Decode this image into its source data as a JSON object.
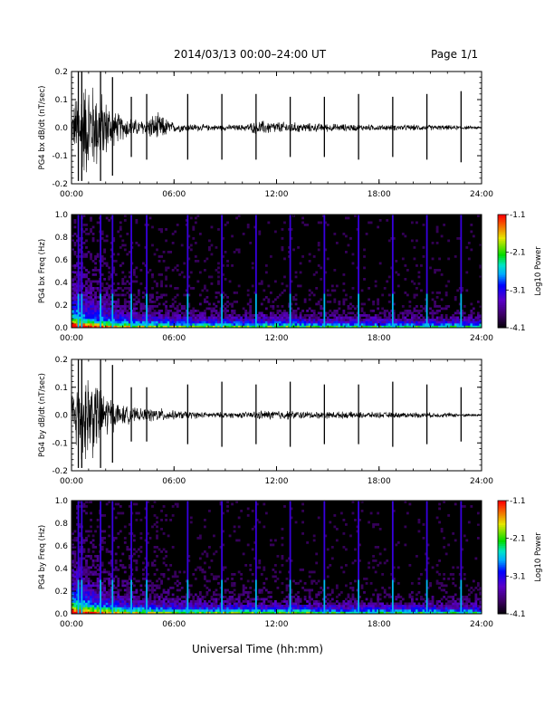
{
  "header": {
    "title": "2014/03/13  00:00–24:00 UT",
    "page": "Page 1/1"
  },
  "x_axis_title": "Universal Time (hh:mm)",
  "chart_data": [
    {
      "type": "line",
      "ylabel": "PG4 bx dB/dt (nT/sec)",
      "x_ticks": [
        "00:00",
        "06:00",
        "12:00",
        "18:00",
        "24:00"
      ],
      "y_ticks": [
        "0.2",
        "0.1",
        "0.0",
        "-0.1",
        "-0.2"
      ],
      "xlim": [
        0,
        24
      ],
      "ylim": [
        -0.2,
        0.2
      ],
      "series": [
        {
          "values_summary": "noise envelope (hour, amplitude)",
          "x": [
            0,
            0.5,
            1,
            1.5,
            2,
            2.5,
            3,
            4,
            5,
            6,
            8,
            10,
            11,
            12,
            14,
            16,
            18,
            20,
            22,
            24
          ],
          "y": [
            0.06,
            0.2,
            0.2,
            0.17,
            0.12,
            0.07,
            0.05,
            0.03,
            0.06,
            0.02,
            0.012,
            0.012,
            0.03,
            0.025,
            0.018,
            0.015,
            0.012,
            0.012,
            0.01,
            0.005
          ]
        }
      ],
      "spikes_hours": [
        0.4,
        0.6,
        1.7,
        2.4,
        3.5,
        4.4,
        6.8,
        8.8,
        10.8,
        12.8,
        14.8,
        16.8,
        18.8,
        20.8,
        22.8
      ],
      "spike_amplitudes": [
        0.2,
        0.2,
        0.2,
        0.18,
        0.11,
        0.12,
        0.12,
        0.12,
        0.12,
        0.11,
        0.11,
        0.12,
        0.11,
        0.12,
        0.13
      ]
    },
    {
      "type": "heatmap",
      "ylabel": "PG4 bx Freq (Hz)",
      "colorbar_label": "Log10 Power",
      "colorbar_ticks": [
        "-1.1",
        "-2.1",
        "-3.1",
        "-4.1"
      ],
      "x_ticks": [
        "00:00",
        "06:00",
        "12:00",
        "18:00",
        "24:00"
      ],
      "y_ticks": [
        "1.0",
        "0.8",
        "0.6",
        "0.4",
        "0.2",
        "0.0"
      ],
      "xlim": [
        0,
        24
      ],
      "ylim": [
        0,
        1.0
      ],
      "spikes_hours": [
        0.4,
        0.6,
        1.7,
        2.4,
        3.5,
        4.4,
        6.8,
        8.8,
        10.8,
        12.8,
        14.8,
        16.8,
        18.8,
        20.8,
        22.8
      ]
    },
    {
      "type": "line",
      "ylabel": "PG4 by dB/dt (nT/sec)",
      "x_ticks": [
        "00:00",
        "06:00",
        "12:00",
        "18:00",
        "24:00"
      ],
      "y_ticks": [
        "0.2",
        "0.1",
        "0.0",
        "-0.1",
        "-0.2"
      ],
      "xlim": [
        0,
        24
      ],
      "ylim": [
        -0.2,
        0.2
      ],
      "series": [
        {
          "values_summary": "noise envelope (hour, amplitude)",
          "x": [
            0,
            0.5,
            1,
            1.5,
            2,
            2.5,
            3,
            4,
            5,
            6,
            8,
            10,
            11,
            12,
            14,
            16,
            18,
            20,
            22,
            24
          ],
          "y": [
            0.08,
            0.2,
            0.2,
            0.15,
            0.1,
            0.06,
            0.04,
            0.025,
            0.03,
            0.018,
            0.012,
            0.012,
            0.018,
            0.02,
            0.015,
            0.014,
            0.012,
            0.011,
            0.01,
            0.005
          ]
        }
      ],
      "spikes_hours": [
        0.4,
        0.6,
        1.7,
        2.4,
        3.5,
        4.4,
        6.8,
        8.8,
        10.8,
        12.8,
        14.8,
        16.8,
        18.8,
        20.8,
        22.8
      ],
      "spike_amplitudes": [
        0.2,
        0.2,
        0.2,
        0.18,
        0.1,
        0.1,
        0.11,
        0.12,
        0.11,
        0.12,
        0.11,
        0.11,
        0.12,
        0.11,
        0.1
      ]
    },
    {
      "type": "heatmap",
      "ylabel": "PG4 by Freq (Hz)",
      "colorbar_label": "Log10 Power",
      "colorbar_ticks": [
        "-1.1",
        "-2.1",
        "-3.1",
        "-4.1"
      ],
      "x_ticks": [
        "00:00",
        "06:00",
        "12:00",
        "18:00",
        "24:00"
      ],
      "y_ticks": [
        "1.0",
        "0.8",
        "0.6",
        "0.4",
        "0.2",
        "0.0"
      ],
      "xlim": [
        0,
        24
      ],
      "ylim": [
        0,
        1.0
      ],
      "spikes_hours": [
        0.4,
        0.6,
        1.7,
        2.4,
        3.5,
        4.4,
        6.8,
        8.8,
        10.8,
        12.8,
        14.8,
        16.8,
        18.8,
        20.8,
        22.8
      ]
    }
  ]
}
